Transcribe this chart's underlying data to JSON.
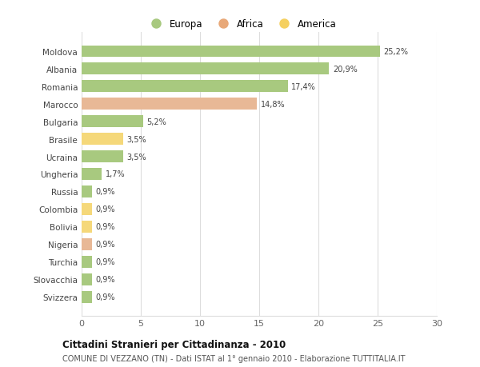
{
  "countries": [
    "Moldova",
    "Albania",
    "Romania",
    "Marocco",
    "Bulgaria",
    "Brasile",
    "Ucraina",
    "Ungheria",
    "Russia",
    "Colombia",
    "Bolivia",
    "Nigeria",
    "Turchia",
    "Slovacchia",
    "Svizzera"
  ],
  "values": [
    25.2,
    20.9,
    17.4,
    14.8,
    5.2,
    3.5,
    3.5,
    1.7,
    0.9,
    0.9,
    0.9,
    0.9,
    0.9,
    0.9,
    0.9
  ],
  "labels": [
    "25,2%",
    "20,9%",
    "17,4%",
    "14,8%",
    "5,2%",
    "3,5%",
    "3,5%",
    "1,7%",
    "0,9%",
    "0,9%",
    "0,9%",
    "0,9%",
    "0,9%",
    "0,9%",
    "0,9%"
  ],
  "continents": [
    "Europa",
    "Europa",
    "Europa",
    "Africa",
    "Europa",
    "America",
    "Europa",
    "Europa",
    "Europa",
    "America",
    "America",
    "Africa",
    "Europa",
    "Europa",
    "Europa"
  ],
  "colors": {
    "Europa": "#a8c97f",
    "Africa": "#e8b896",
    "America": "#f5d87a"
  },
  "legend_colors": {
    "Europa": "#a8c97f",
    "Africa": "#e8a878",
    "America": "#f5d060"
  },
  "title": "Cittadini Stranieri per Cittadinanza - 2010",
  "subtitle": "COMUNE DI VEZZANO (TN) - Dati ISTAT al 1° gennaio 2010 - Elaborazione TUTTITALIA.IT",
  "xlim": [
    0,
    30
  ],
  "xticks": [
    0,
    5,
    10,
    15,
    20,
    25,
    30
  ],
  "bg_color": "#ffffff",
  "grid_color": "#dddddd",
  "bar_height": 0.65
}
